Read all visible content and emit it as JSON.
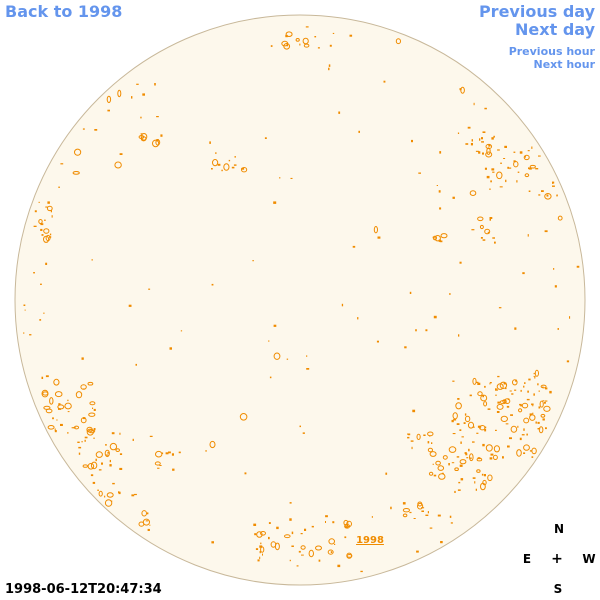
{
  "nav": {
    "back": "Back to 1998",
    "previous_day": "Previous day",
    "next_day": "Next day",
    "previous_hour": "Previous hour",
    "next_hour": "Next hour"
  },
  "map": {
    "label": "1998",
    "timestamp": "1998-06-12T20:47:34"
  },
  "compass": {
    "north": "N",
    "east": "E",
    "center": "+",
    "west": "W",
    "south": "S"
  },
  "colors": {
    "link": "#6495ed",
    "disk_fill": "#fdf8ec",
    "disk_border": "#c8b89a",
    "feature": "#f08c00"
  }
}
